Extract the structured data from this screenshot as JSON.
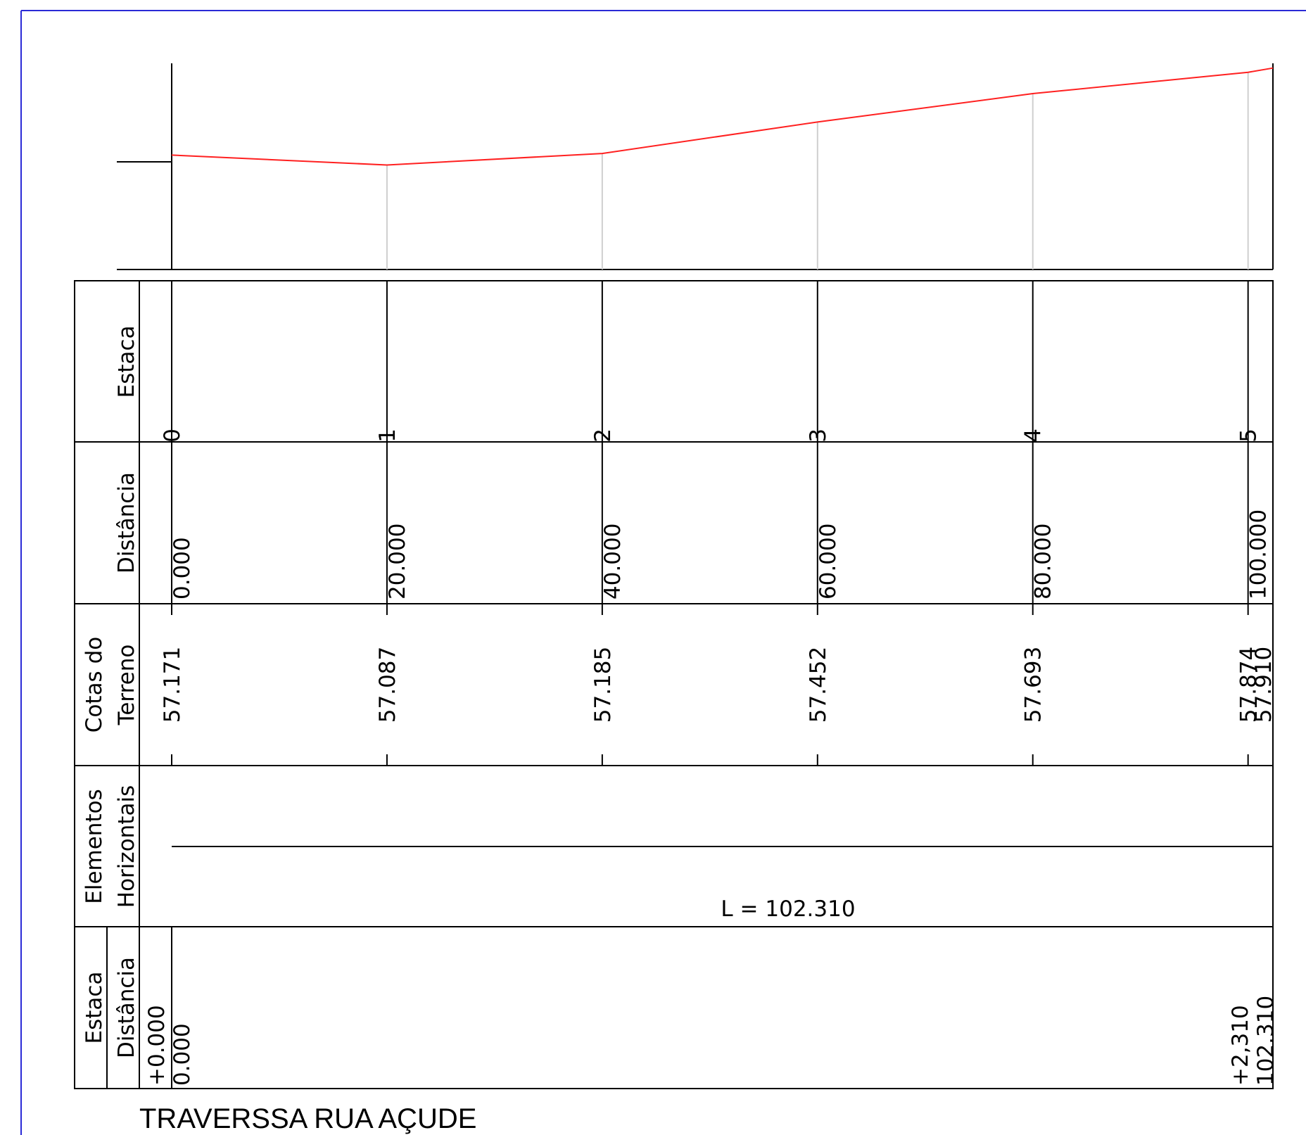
{
  "title": "TRAVERSSA RUA AÇUDE",
  "colors": {
    "frame": "#2a2ad6",
    "profile": "#ff2020",
    "gridline": "#cfcfcf",
    "line": "#000000"
  },
  "row_labels": {
    "estaca": "Estaca",
    "distancia": "Distância",
    "cotas_line1": "Cotas do",
    "cotas_line2": "Terreno",
    "elementos_line1": "Elementos",
    "elementos_line2": "Horizontais",
    "final_estaca": "Estaca",
    "final_distancia": "Distância"
  },
  "chart_data": {
    "type": "line",
    "title": "",
    "xlabel": "",
    "ylabel": "",
    "xlim": [
      0,
      102.31
    ],
    "ylim": [
      56.2,
      57.95
    ],
    "series": [
      {
        "x": [
          0,
          20,
          40,
          60,
          80,
          100,
          102.31
        ],
        "y": [
          57.171,
          57.087,
          57.185,
          57.452,
          57.693,
          57.874,
          57.91
        ]
      }
    ],
    "stations": [
      {
        "estaca": "0",
        "distancia": "0.000",
        "cota": "57.171",
        "x": 0
      },
      {
        "estaca": "1",
        "distancia": "20.000",
        "cota": "57.087",
        "x": 20
      },
      {
        "estaca": "2",
        "distancia": "40.000",
        "cota": "57.185",
        "x": 40
      },
      {
        "estaca": "3",
        "distancia": "60.000",
        "cota": "57.452",
        "x": 60
      },
      {
        "estaca": "4",
        "distancia": "80.000",
        "cota": "57.693",
        "x": 80
      },
      {
        "estaca": "5",
        "distancia": "100.000",
        "cota": "57.874",
        "x": 100
      }
    ],
    "end_cota": "57.910",
    "horizontal_element": "L = 102.310",
    "final_points": [
      {
        "estaca": "+0.000",
        "distancia": "0.000",
        "x": 0
      },
      {
        "estaca": "+2,310",
        "distancia": "102.310",
        "x": 102.31
      }
    ]
  }
}
